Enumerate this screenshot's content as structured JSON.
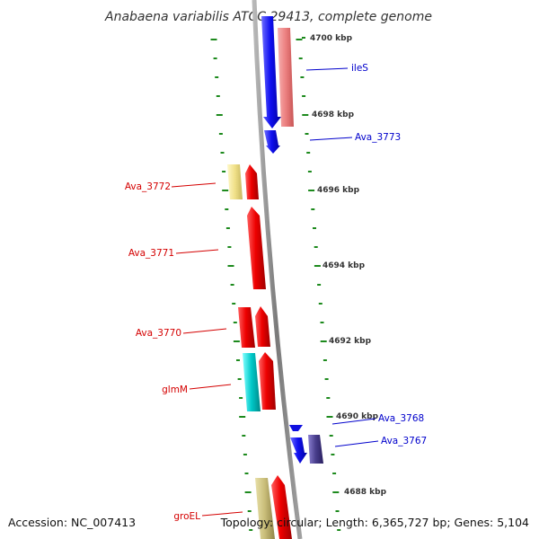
{
  "title": "Anabaena variabilis ATCC 29413, complete genome",
  "footer": {
    "accession": "Accession: NC_007413",
    "summary": "Topology: circular; Length: 6,365,727 bp; Genes: 5,104"
  },
  "colors": {
    "backbone": "#8a8a8a",
    "tick": "#1d8a1d",
    "reverse_label": "#d40000",
    "forward_label": "#0000cc"
  },
  "kbp_labels": [
    "4700 kbp",
    "4698 kbp",
    "4696 kbp",
    "4694 kbp",
    "4692 kbp",
    "4690 kbp",
    "4688 kbp"
  ],
  "gene_labels": [
    {
      "name": "ileS",
      "strand": "forward"
    },
    {
      "name": "Ava_3773",
      "strand": "forward"
    },
    {
      "name": "Ava_3772",
      "strand": "reverse"
    },
    {
      "name": "Ava_3771",
      "strand": "reverse"
    },
    {
      "name": "Ava_3770",
      "strand": "reverse"
    },
    {
      "name": "glmM",
      "strand": "reverse"
    },
    {
      "name": "Ava_3768",
      "strand": "forward"
    },
    {
      "name": "Ava_3767",
      "strand": "forward"
    },
    {
      "name": "groEL",
      "strand": "reverse"
    }
  ]
}
